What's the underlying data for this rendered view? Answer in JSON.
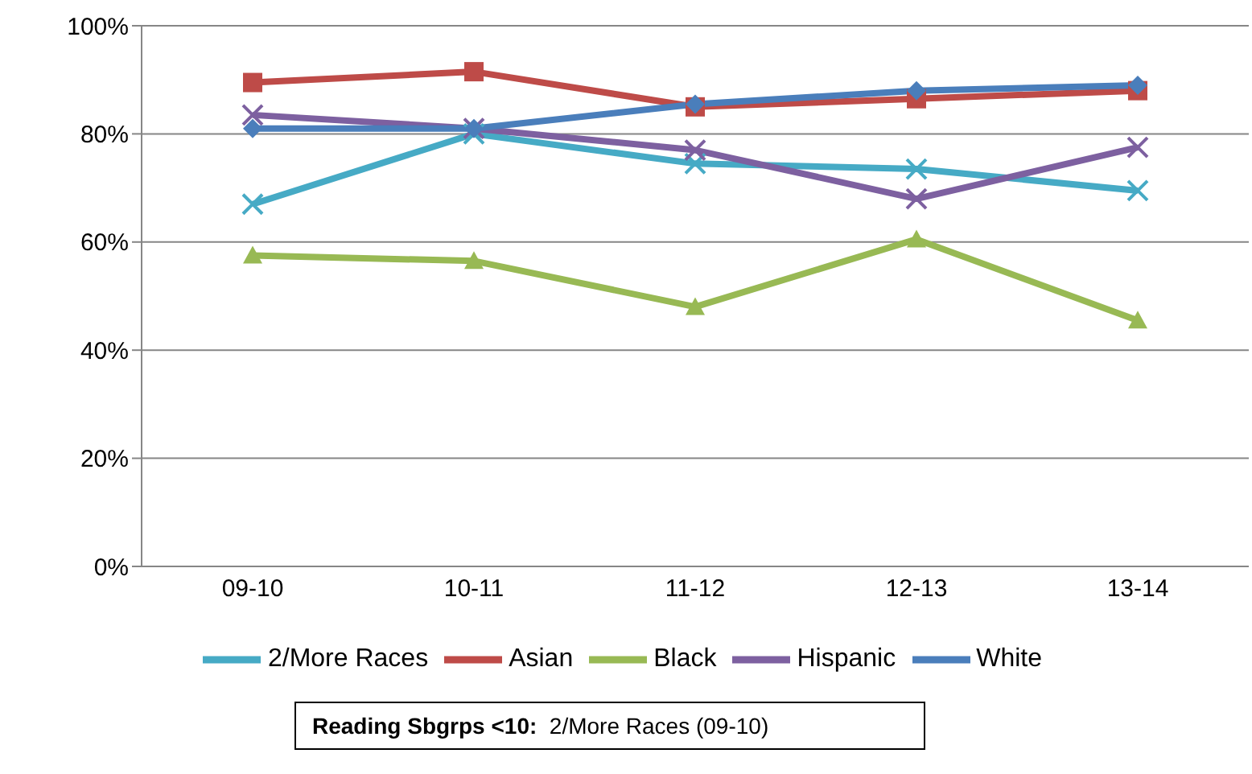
{
  "chart_data": {
    "type": "line",
    "categories": [
      "09-10",
      "10-11",
      "11-12",
      "12-13",
      "13-14"
    ],
    "series": [
      {
        "name": "White",
        "color": "#4a7ebb",
        "marker": "diamond",
        "values": [
          81,
          81,
          85.5,
          88,
          89
        ]
      },
      {
        "name": "Asian",
        "color": "#be4b48",
        "marker": "square",
        "values": [
          89.5,
          91.5,
          85,
          86.5,
          88
        ]
      },
      {
        "name": "Black",
        "color": "#98b954",
        "marker": "triangle",
        "values": [
          57.5,
          56.5,
          48,
          60.5,
          45.5
        ]
      },
      {
        "name": "Hispanic",
        "color": "#7d60a0",
        "marker": "cross",
        "values": [
          83.5,
          81,
          77,
          68,
          77.5
        ]
      },
      {
        "name": "2/More Races",
        "color": "#46aac5",
        "marker": "cross",
        "values": [
          67,
          80,
          74.5,
          73.5,
          69.5
        ]
      }
    ],
    "ylim": [
      0,
      100
    ],
    "yticks": [
      {
        "value": 0,
        "label": "0%"
      },
      {
        "value": 20,
        "label": "20%"
      },
      {
        "value": 40,
        "label": "40%"
      },
      {
        "value": 60,
        "label": "60%"
      },
      {
        "value": 80,
        "label": "80%"
      },
      {
        "value": 100,
        "label": "100%"
      }
    ],
    "grid": "y",
    "legend": "bottom",
    "annotations": [
      "Reading Sbgrps <10:  2/More Races (09-10)"
    ]
  }
}
